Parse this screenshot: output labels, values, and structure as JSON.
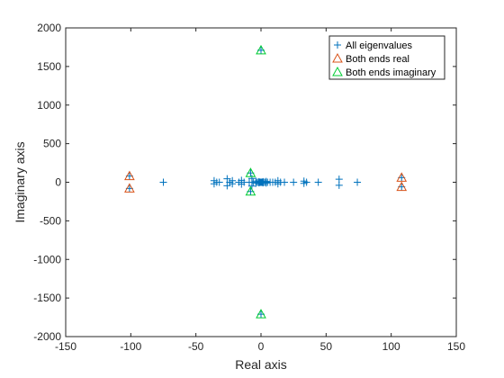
{
  "chart_data": {
    "type": "scatter",
    "xlabel": "Real axis",
    "ylabel": "Imaginary axis",
    "xlim": [
      -150,
      150
    ],
    "ylim": [
      -2000,
      2000
    ],
    "x_ticks": [
      -150,
      -100,
      -50,
      0,
      50,
      100,
      150
    ],
    "y_ticks": [
      -2000,
      -1500,
      -1000,
      -500,
      0,
      500,
      1000,
      1500,
      2000
    ],
    "grid": false,
    "legend_position": "top-right",
    "series": [
      {
        "name": "All eigenvalues",
        "marker": "plus",
        "color": "#0072BD",
        "points": [
          [
            -101,
            80
          ],
          [
            -101,
            -80
          ],
          [
            -75,
            0
          ],
          [
            -36,
            20
          ],
          [
            -36,
            -20
          ],
          [
            -34,
            0
          ],
          [
            -32,
            0
          ],
          [
            -26,
            45
          ],
          [
            -26,
            -45
          ],
          [
            -24,
            0
          ],
          [
            -22,
            20
          ],
          [
            -22,
            -20
          ],
          [
            -17,
            0
          ],
          [
            -15,
            25
          ],
          [
            -15,
            -25
          ],
          [
            -13,
            0
          ],
          [
            -9,
            0
          ],
          [
            -8,
            120
          ],
          [
            -8,
            -120
          ],
          [
            -7,
            50
          ],
          [
            -7,
            -50
          ],
          [
            -6,
            0
          ],
          [
            -4,
            15
          ],
          [
            -4,
            -15
          ],
          [
            -3,
            0
          ],
          [
            -2,
            0
          ],
          [
            -1.5,
            8
          ],
          [
            -1.5,
            -8
          ],
          [
            -1,
            0
          ],
          [
            -0.5,
            0
          ],
          [
            0,
            0
          ],
          [
            0,
            1710
          ],
          [
            0,
            -1710
          ],
          [
            0.5,
            0
          ],
          [
            1,
            0
          ],
          [
            1.5,
            8
          ],
          [
            1.5,
            -8
          ],
          [
            2,
            0
          ],
          [
            3,
            0
          ],
          [
            4,
            10
          ],
          [
            4,
            -10
          ],
          [
            5,
            0
          ],
          [
            7,
            0
          ],
          [
            9,
            0
          ],
          [
            11,
            0
          ],
          [
            13,
            20
          ],
          [
            13,
            -20
          ],
          [
            15,
            0
          ],
          [
            18,
            0
          ],
          [
            25,
            0
          ],
          [
            33,
            15
          ],
          [
            33,
            -15
          ],
          [
            35,
            0
          ],
          [
            44,
            0
          ],
          [
            60,
            40
          ],
          [
            60,
            -40
          ],
          [
            74,
            0
          ],
          [
            108,
            60
          ],
          [
            108,
            -60
          ]
        ]
      },
      {
        "name": "Both ends real",
        "marker": "triangle",
        "color": "#D95319",
        "points": [
          [
            -101,
            80
          ],
          [
            -101,
            -80
          ],
          [
            108,
            60
          ],
          [
            108,
            -60
          ]
        ]
      },
      {
        "name": "Both ends imaginary",
        "marker": "triangle",
        "color": "#00CC33",
        "points": [
          [
            0,
            1710
          ],
          [
            0,
            -1710
          ],
          [
            -8,
            120
          ],
          [
            -8,
            -120
          ]
        ]
      }
    ]
  }
}
